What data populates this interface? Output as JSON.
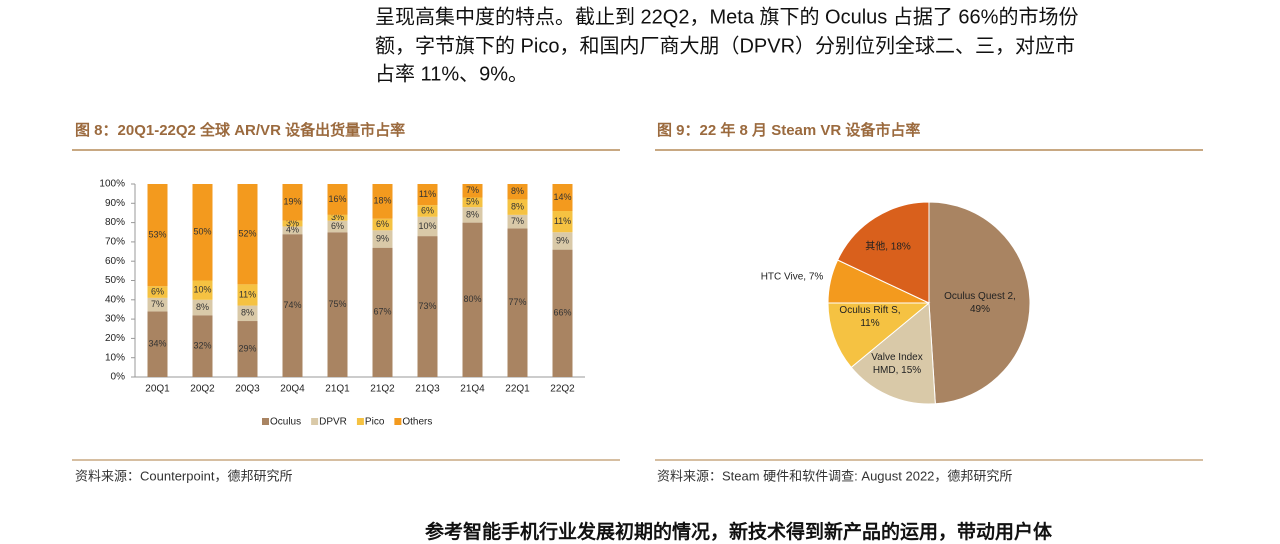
{
  "paragraph": [
    "呈现高集中度的特点。截止到 22Q2，Meta 旗下的 Oculus 占据了 66%的市场份",
    "额，字节旗下的 Pico，和国内厂商大朋（DPVR）分别位列全球二、三，对应市",
    "占率 11%、9%。"
  ],
  "footer_text": "参考智能手机行业发展初期的情况，新技术得到新产品的运用，带动用户体",
  "chart_data": [
    {
      "type": "bar",
      "stacked": true,
      "title": "图 8：20Q1-22Q2 全球 AR/VR 设备出货量市占率",
      "source": "资料来源：Counterpoint，德邦研究所",
      "categories": [
        "20Q1",
        "20Q2",
        "20Q3",
        "20Q4",
        "21Q1",
        "21Q2",
        "21Q3",
        "21Q4",
        "22Q1",
        "22Q2"
      ],
      "series": [
        {
          "name": "Oculus",
          "color": "#a98462",
          "values": [
            34,
            32,
            29,
            74,
            75,
            67,
            73,
            80,
            77,
            66
          ],
          "value_labels": [
            "34%",
            "32%",
            "29%",
            "74%",
            "75%",
            "67%",
            "73%",
            "80%",
            "77%",
            "66%"
          ]
        },
        {
          "name": "DPVR",
          "color": "#d9c9a8",
          "values": [
            7,
            8,
            8,
            4,
            6,
            9,
            10,
            8,
            7,
            9
          ],
          "value_labels": [
            "7%",
            "8%",
            "8%",
            "4%",
            "6%",
            "9%",
            "10%",
            "8%",
            "7%",
            "9%"
          ]
        },
        {
          "name": "Pico",
          "color": "#f5c242",
          "values": [
            6,
            10,
            11,
            3,
            3,
            6,
            6,
            5,
            8,
            11
          ],
          "value_labels": [
            "6%",
            "10%",
            "11%",
            "3%",
            "3%",
            "6%",
            "6%",
            "5%",
            "8%",
            "11%"
          ]
        },
        {
          "name": "Others",
          "color": "#f39a1e",
          "values": [
            53,
            50,
            52,
            19,
            16,
            18,
            11,
            7,
            8,
            14
          ],
          "value_labels": [
            "53%",
            "50%",
            "52%",
            "19%",
            "16%",
            "18%",
            "11%",
            "7%",
            "8%",
            "14%"
          ]
        }
      ],
      "ylim": [
        0,
        100
      ],
      "yticks": [
        {
          "value": 0,
          "label": "0%"
        },
        {
          "value": 10,
          "label": "10%"
        },
        {
          "value": 20,
          "label": "20%"
        },
        {
          "value": 30,
          "label": "30%"
        },
        {
          "value": 40,
          "label": "40%"
        },
        {
          "value": 50,
          "label": "50%"
        },
        {
          "value": 60,
          "label": "60%"
        },
        {
          "value": 70,
          "label": "70%"
        },
        {
          "value": 80,
          "label": "80%"
        },
        {
          "value": 90,
          "label": "90%"
        },
        {
          "value": 100,
          "label": "100%"
        }
      ],
      "legend": "bottom"
    },
    {
      "type": "pie",
      "title": "图 9：22 年 8 月 Steam VR 设备市占率",
      "source": "资料来源：Steam 硬件和软件调查: August 2022，德邦研究所",
      "values": [
        49,
        15,
        11,
        7,
        18
      ],
      "value_labels": [
        "Oculus Quest 2, 49%",
        "Valve Index HMD, 15%",
        "Oculus Rift S, 11%",
        "HTC Vive, 7%",
        "其他, 18%"
      ],
      "colors": [
        "#a98462",
        "#d9c9a8",
        "#f5c242",
        "#f39a1e",
        "#d9601c"
      ]
    }
  ]
}
